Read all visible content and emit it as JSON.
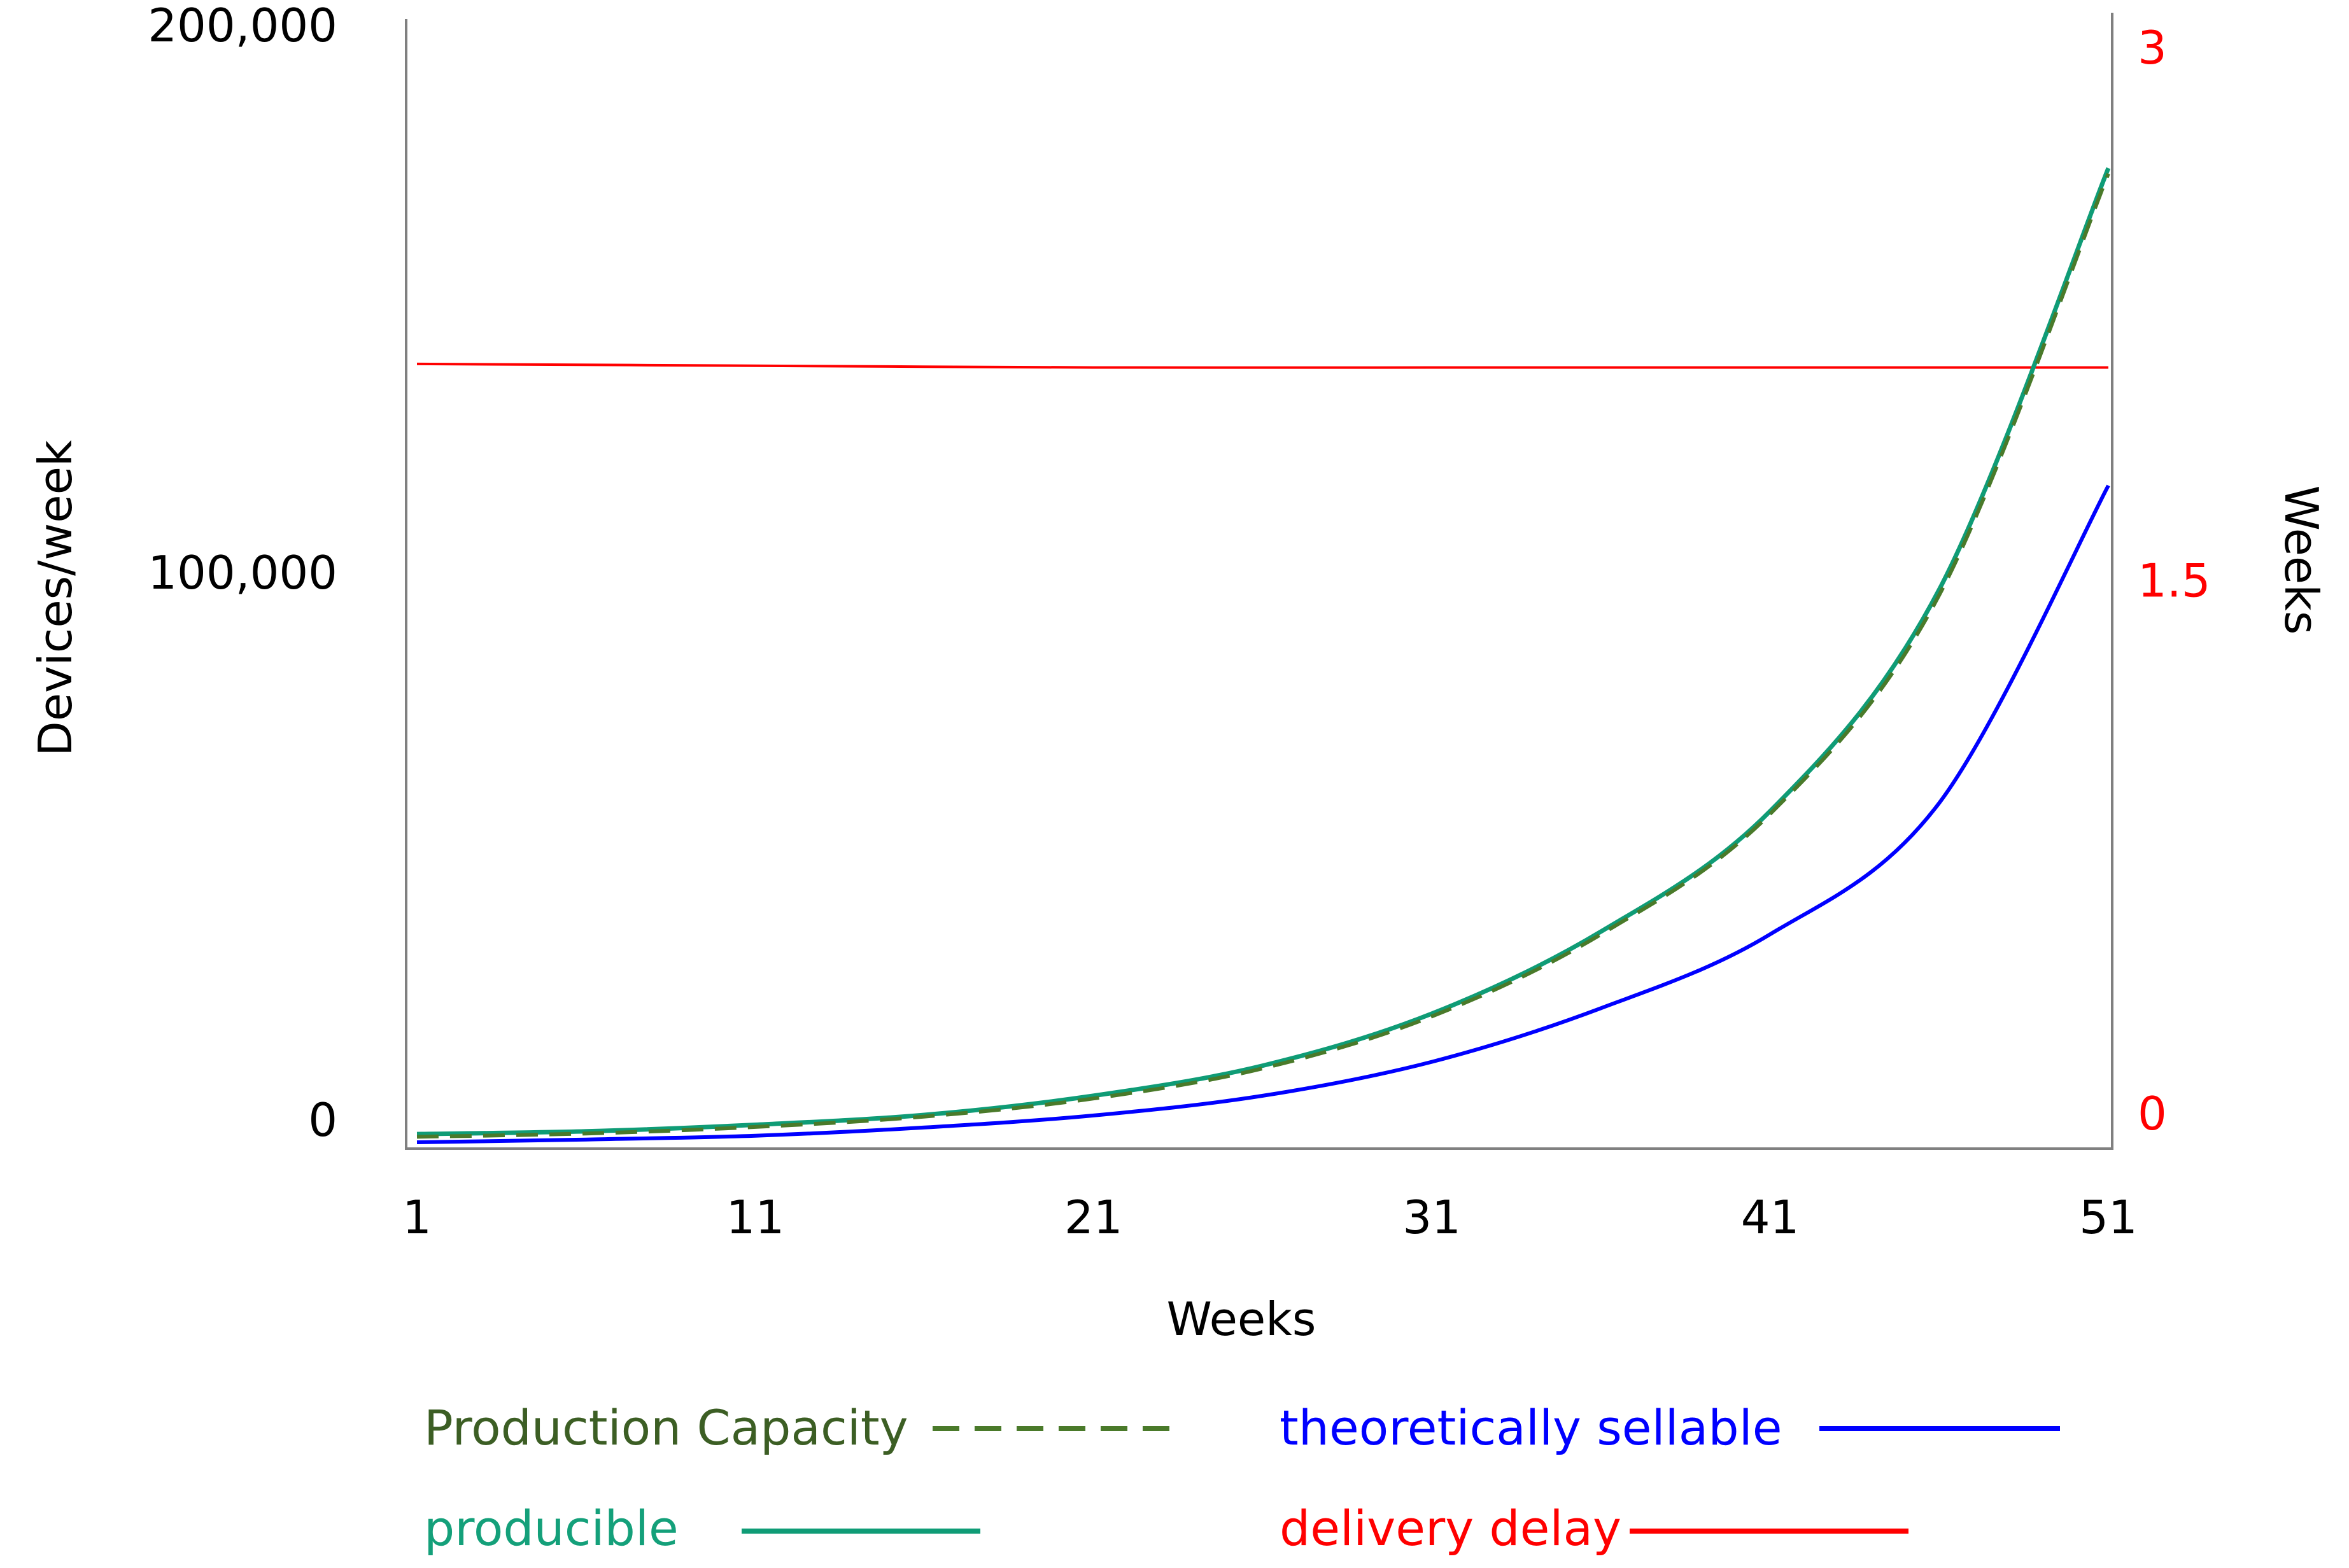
{
  "chart_data": {
    "type": "line",
    "title": "",
    "xlabel": "Weeks",
    "ylabel_left": "Devices/week",
    "ylabel_right": "Weeks",
    "x_ticks": [
      "1",
      "11",
      "21",
      "31",
      "41",
      "51"
    ],
    "y_left_ticks": [
      "0",
      "100,000",
      "200,000"
    ],
    "y_right_ticks": [
      "0",
      "1.5",
      "3"
    ],
    "xlim": [
      1,
      51
    ],
    "ylim_left": [
      0,
      200000
    ],
    "ylim_right": [
      0,
      3
    ],
    "grid": false,
    "legend_position": "bottom",
    "series": [
      {
        "name": "Production Capacity",
        "axis": "left",
        "style": "dash-dot",
        "color": "#4a7a2a",
        "text_color": "#3c5e24",
        "x": [
          1,
          6,
          11,
          16,
          21,
          26,
          31,
          36,
          41,
          46,
          51
        ],
        "values": [
          1000,
          1600,
          2800,
          4700,
          8000,
          13500,
          23000,
          38000,
          60000,
          100000,
          177000
        ]
      },
      {
        "name": "producible",
        "axis": "left",
        "style": "solid",
        "color": "#0f9c76",
        "text_color": "#14a07a",
        "x": [
          1,
          6,
          11,
          16,
          21,
          26,
          31,
          36,
          41,
          46,
          51
        ],
        "values": [
          1500,
          2000,
          3200,
          5000,
          8500,
          14000,
          23500,
          38500,
          60500,
          101000,
          178000
        ]
      },
      {
        "name": "theoretically sellable",
        "axis": "left",
        "style": "solid",
        "color": "#0000ff",
        "text_color": "#0000ff",
        "x": [
          1,
          6,
          11,
          16,
          21,
          26,
          31,
          36,
          41,
          46,
          51
        ],
        "values": [
          0,
          500,
          1200,
          2700,
          4900,
          8500,
          14700,
          24500,
          38000,
          62000,
          120000
        ]
      },
      {
        "name": "delivery delay",
        "axis": "right",
        "style": "solid",
        "color": "#ff0000",
        "text_color": "#ff0000",
        "x": [
          1,
          11,
          21,
          31,
          41,
          51
        ],
        "values": [
          2.11,
          2.105,
          2.1,
          2.1,
          2.1,
          2.1
        ]
      }
    ]
  }
}
